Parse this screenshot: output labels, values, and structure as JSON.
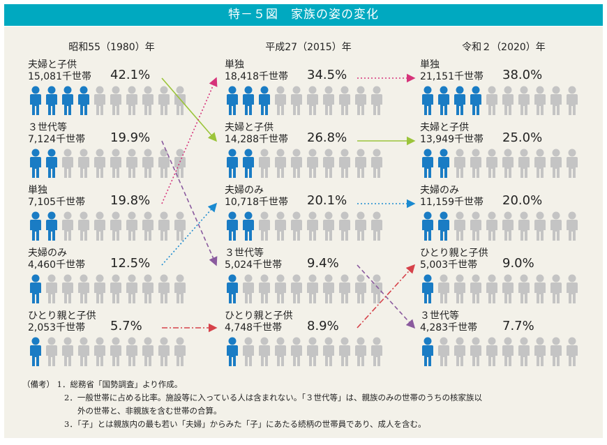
{
  "title": "特－５図　家族の姿の変化",
  "colors": {
    "filled": "#1a7cc4",
    "empty": "#c4c4c4",
    "title_bg": "#00a9c0"
  },
  "chart_data": {
    "type": "pictogram",
    "columns": [
      {
        "year": "昭和55（1980）年",
        "rows": [
          {
            "label": "夫婦と子供",
            "households": "15,081千世帯",
            "percent": "42.1%",
            "filled": 4
          },
          {
            "label": "３世代等",
            "households": "7,124千世帯",
            "percent": "19.9%",
            "filled": 2
          },
          {
            "label": "単独",
            "households": "7,105千世帯",
            "percent": "19.8%",
            "filled": 2
          },
          {
            "label": "夫婦のみ",
            "households": "4,460千世帯",
            "percent": "12.5%",
            "filled": 1
          },
          {
            "label": "ひとり親と子供",
            "households": "2,053千世帯",
            "percent": "5.7%",
            "filled": 1
          }
        ]
      },
      {
        "year": "平成27（2015）年",
        "rows": [
          {
            "label": "単独",
            "households": "18,418千世帯",
            "percent": "34.5%",
            "filled": 3
          },
          {
            "label": "夫婦と子供",
            "households": "14,288千世帯",
            "percent": "26.8%",
            "filled": 2
          },
          {
            "label": "夫婦のみ",
            "households": "10,718千世帯",
            "percent": "20.1%",
            "filled": 2
          },
          {
            "label": "３世代等",
            "households": "5,024千世帯",
            "percent": "9.4%",
            "filled": 1
          },
          {
            "label": "ひとり親と子供",
            "households": "4,748千世帯",
            "percent": "8.9%",
            "filled": 1
          }
        ]
      },
      {
        "year": "令和２（2020）年",
        "rows": [
          {
            "label": "単独",
            "households": "21,151千世帯",
            "percent": "38.0%",
            "filled": 4
          },
          {
            "label": "夫婦と子供",
            "households": "13,949千世帯",
            "percent": "25.0%",
            "filled": 2
          },
          {
            "label": "夫婦のみ",
            "households": "11,159千世帯",
            "percent": "20.0%",
            "filled": 2
          },
          {
            "label": "ひとり親と子供",
            "households": "5,003千世帯",
            "percent": "9.0%",
            "filled": 1
          },
          {
            "label": "３世代等",
            "households": "4,283千世帯",
            "percent": "7.7%",
            "filled": 1
          }
        ]
      }
    ],
    "icons_per_row": 10,
    "links": [
      {
        "category": "夫婦と子供",
        "color": "#9bc43a",
        "style": "solid"
      },
      {
        "category": "単独",
        "color": "#d6337a",
        "style": "dotted"
      },
      {
        "category": "３世代等",
        "color": "#8a5a9e",
        "style": "dashed"
      },
      {
        "category": "夫婦のみ",
        "color": "#1a8ad0",
        "style": "dotted"
      },
      {
        "category": "ひとり親と子供",
        "color": "#d6424a",
        "style": "dashdot"
      }
    ]
  },
  "notes": {
    "prefix": "（備考）",
    "items": [
      "1．総務省「国勢調査」より作成。",
      "2．一般世帯に占める比率。施設等に入っている人は含まれない。「３世代等」は、親族のみの世帯のうちの核家族以",
      "3．「子」とは親族内の最も若い「夫婦」からみた「子」にあたる続柄の世帯員であり、成人を含む。"
    ],
    "item2_cont": "外の世帯と、非親族を含む世帯の合算。"
  }
}
